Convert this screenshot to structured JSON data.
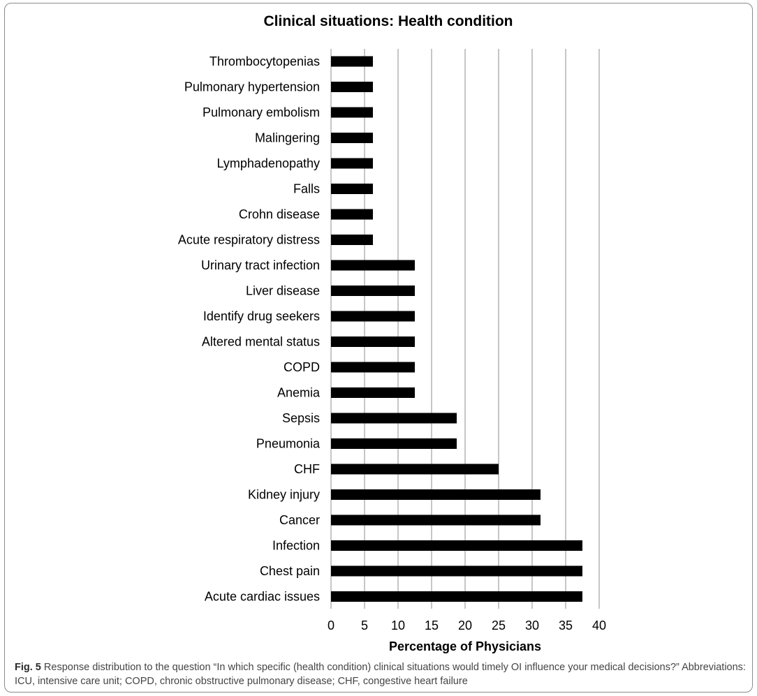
{
  "chart_data": {
    "type": "bar",
    "orientation": "horizontal",
    "title": "Clinical situations: Health condition",
    "xlabel": "Percentage of Physicians",
    "ylabel": "",
    "xlim": [
      0,
      40
    ],
    "x_ticks": [
      0,
      5,
      10,
      15,
      20,
      25,
      30,
      35,
      40
    ],
    "grid": "vertical",
    "legend": "none",
    "bar_color": "#000000",
    "grid_color": "#8c8c8c",
    "categories": [
      "Thrombocytopenias",
      "Pulmonary hypertension",
      "Pulmonary embolism",
      "Malingering",
      "Lymphadenopathy",
      "Falls",
      "Crohn disease",
      "Acute respiratory distress",
      "Urinary tract infection",
      "Liver disease",
      "Identify drug seekers",
      "Altered mental status",
      "COPD",
      "Anemia",
      "Sepsis",
      "Pneumonia",
      "CHF",
      "Kidney injury",
      "Cancer",
      "Infection",
      "Chest pain",
      "Acute cardiac issues"
    ],
    "values": [
      6.25,
      6.25,
      6.25,
      6.25,
      6.25,
      6.25,
      6.25,
      6.25,
      12.5,
      12.5,
      12.5,
      12.5,
      12.5,
      12.5,
      18.75,
      18.75,
      25,
      31.25,
      31.25,
      37.5,
      37.5,
      37.5
    ]
  },
  "caption": {
    "label": "Fig. 5",
    "text": "Response distribution to the question “In which specific (health condition) clinical situations would timely OI influence your medical decisions?” Abbreviations: ICU, intensive care unit; COPD, chronic obstructive pulmonary disease; CHF, congestive heart failure"
  }
}
